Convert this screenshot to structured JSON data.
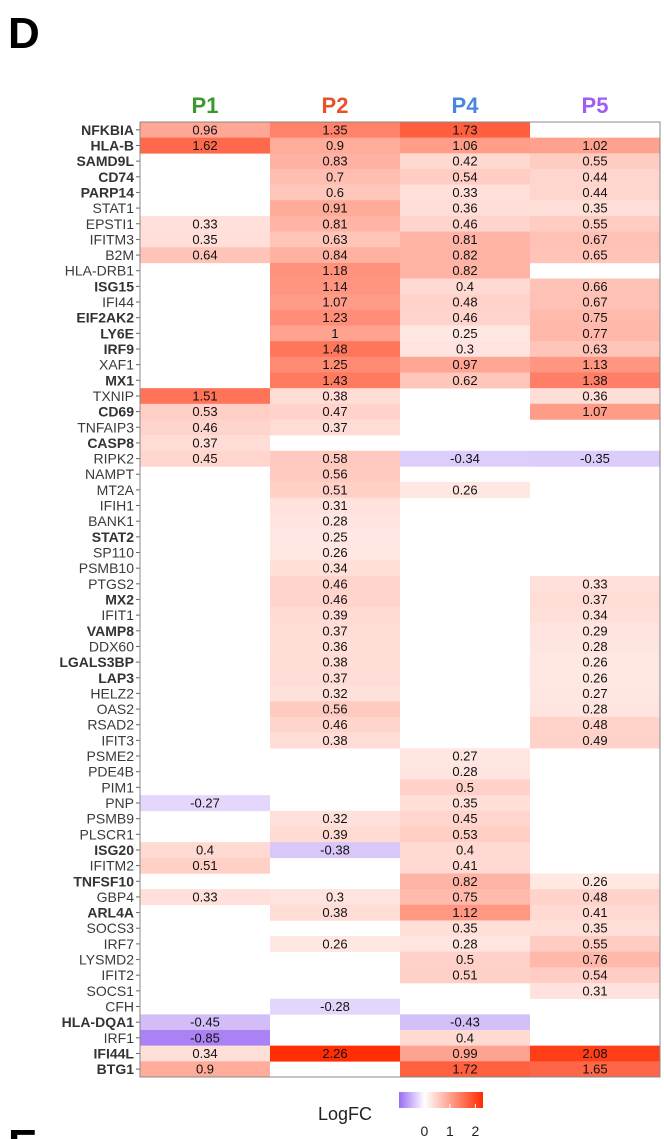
{
  "panel_label": "D",
  "next_panel_label": "E",
  "chart_data": {
    "type": "heatmap",
    "columns": [
      {
        "name": "P1",
        "color": "#3a9a2f"
      },
      {
        "name": "P2",
        "color": "#e8522b"
      },
      {
        "name": "P4",
        "color": "#4a86e0"
      },
      {
        "name": "P5",
        "color": "#a35cf0"
      }
    ],
    "rows": [
      {
        "gene": "NFKBIA",
        "bold": true,
        "values": [
          0.96,
          1.35,
          1.73,
          null
        ]
      },
      {
        "gene": "HLA-B",
        "bold": true,
        "values": [
          1.62,
          0.9,
          1.06,
          1.02
        ]
      },
      {
        "gene": "SAMD9L",
        "bold": true,
        "values": [
          null,
          0.83,
          0.42,
          0.55
        ]
      },
      {
        "gene": "CD74",
        "bold": true,
        "values": [
          null,
          0.7,
          0.54,
          0.44
        ]
      },
      {
        "gene": "PARP14",
        "bold": true,
        "values": [
          null,
          0.6,
          0.33,
          0.44
        ]
      },
      {
        "gene": "STAT1",
        "bold": false,
        "values": [
          null,
          0.91,
          0.36,
          0.35
        ]
      },
      {
        "gene": "EPSTI1",
        "bold": false,
        "values": [
          0.33,
          0.81,
          0.46,
          0.55
        ]
      },
      {
        "gene": "IFITM3",
        "bold": false,
        "values": [
          0.35,
          0.63,
          0.81,
          0.67
        ]
      },
      {
        "gene": "B2M",
        "bold": false,
        "values": [
          0.64,
          0.84,
          0.82,
          0.65
        ]
      },
      {
        "gene": "HLA-DRB1",
        "bold": false,
        "values": [
          null,
          1.18,
          0.82,
          null
        ]
      },
      {
        "gene": "ISG15",
        "bold": true,
        "values": [
          null,
          1.14,
          0.4,
          0.66
        ]
      },
      {
        "gene": "IFI44",
        "bold": false,
        "values": [
          null,
          1.07,
          0.48,
          0.67
        ]
      },
      {
        "gene": "EIF2AK2",
        "bold": true,
        "values": [
          null,
          1.23,
          0.46,
          0.75
        ]
      },
      {
        "gene": "LY6E",
        "bold": true,
        "values": [
          null,
          1,
          0.25,
          0.77
        ]
      },
      {
        "gene": "IRF9",
        "bold": true,
        "values": [
          null,
          1.48,
          0.3,
          0.63
        ]
      },
      {
        "gene": "XAF1",
        "bold": false,
        "values": [
          null,
          1.25,
          0.97,
          1.13
        ]
      },
      {
        "gene": "MX1",
        "bold": true,
        "values": [
          null,
          1.43,
          0.62,
          1.38
        ]
      },
      {
        "gene": "TXNIP",
        "bold": false,
        "values": [
          1.51,
          0.38,
          null,
          0.36
        ]
      },
      {
        "gene": "CD69",
        "bold": true,
        "values": [
          0.53,
          0.47,
          null,
          1.07
        ]
      },
      {
        "gene": "TNFAIP3",
        "bold": false,
        "values": [
          0.46,
          0.37,
          null,
          null
        ]
      },
      {
        "gene": "CASP8",
        "bold": true,
        "values": [
          0.37,
          null,
          null,
          null
        ]
      },
      {
        "gene": "RIPK2",
        "bold": false,
        "values": [
          0.45,
          0.58,
          -0.34,
          -0.35
        ]
      },
      {
        "gene": "NAMPT",
        "bold": false,
        "values": [
          null,
          0.56,
          null,
          null
        ]
      },
      {
        "gene": "MT2A",
        "bold": false,
        "values": [
          null,
          0.51,
          0.26,
          null
        ]
      },
      {
        "gene": "IFIH1",
        "bold": false,
        "values": [
          null,
          0.31,
          null,
          null
        ]
      },
      {
        "gene": "BANK1",
        "bold": false,
        "values": [
          null,
          0.28,
          null,
          null
        ]
      },
      {
        "gene": "STAT2",
        "bold": true,
        "values": [
          null,
          0.25,
          null,
          null
        ]
      },
      {
        "gene": "SP110",
        "bold": false,
        "values": [
          null,
          0.26,
          null,
          null
        ]
      },
      {
        "gene": "PSMB10",
        "bold": false,
        "values": [
          null,
          0.34,
          null,
          null
        ]
      },
      {
        "gene": "PTGS2",
        "bold": false,
        "values": [
          null,
          0.46,
          null,
          0.33
        ]
      },
      {
        "gene": "MX2",
        "bold": true,
        "values": [
          null,
          0.46,
          null,
          0.37
        ]
      },
      {
        "gene": "IFIT1",
        "bold": false,
        "values": [
          null,
          0.39,
          null,
          0.34
        ]
      },
      {
        "gene": "VAMP8",
        "bold": true,
        "values": [
          null,
          0.37,
          null,
          0.29
        ]
      },
      {
        "gene": "DDX60",
        "bold": false,
        "values": [
          null,
          0.36,
          null,
          0.28
        ]
      },
      {
        "gene": "LGALS3BP",
        "bold": true,
        "values": [
          null,
          0.38,
          null,
          0.26
        ]
      },
      {
        "gene": "LAP3",
        "bold": true,
        "values": [
          null,
          0.37,
          null,
          0.26
        ]
      },
      {
        "gene": "HELZ2",
        "bold": false,
        "values": [
          null,
          0.32,
          null,
          0.27
        ]
      },
      {
        "gene": "OAS2",
        "bold": false,
        "values": [
          null,
          0.56,
          null,
          0.28
        ]
      },
      {
        "gene": "RSAD2",
        "bold": false,
        "values": [
          null,
          0.46,
          null,
          0.48
        ]
      },
      {
        "gene": "IFIT3",
        "bold": false,
        "values": [
          null,
          0.38,
          null,
          0.49
        ]
      },
      {
        "gene": "PSME2",
        "bold": false,
        "values": [
          null,
          null,
          0.27,
          null
        ]
      },
      {
        "gene": "PDE4B",
        "bold": false,
        "values": [
          null,
          null,
          0.28,
          null
        ]
      },
      {
        "gene": "PIM1",
        "bold": false,
        "values": [
          null,
          null,
          0.5,
          null
        ]
      },
      {
        "gene": "PNP",
        "bold": false,
        "values": [
          -0.27,
          null,
          0.35,
          null
        ]
      },
      {
        "gene": "PSMB9",
        "bold": false,
        "values": [
          null,
          0.32,
          0.45,
          null
        ]
      },
      {
        "gene": "PLSCR1",
        "bold": false,
        "values": [
          null,
          0.39,
          0.53,
          null
        ]
      },
      {
        "gene": "ISG20",
        "bold": true,
        "values": [
          0.4,
          -0.38,
          0.4,
          null
        ]
      },
      {
        "gene": "IFITM2",
        "bold": false,
        "values": [
          0.51,
          null,
          0.41,
          null
        ]
      },
      {
        "gene": "TNFSF10",
        "bold": true,
        "values": [
          null,
          null,
          0.82,
          0.26
        ]
      },
      {
        "gene": "GBP4",
        "bold": false,
        "values": [
          0.33,
          0.3,
          0.75,
          0.48
        ]
      },
      {
        "gene": "ARL4A",
        "bold": true,
        "values": [
          null,
          0.38,
          1.12,
          0.41
        ]
      },
      {
        "gene": "SOCS3",
        "bold": false,
        "values": [
          null,
          null,
          0.35,
          0.35
        ]
      },
      {
        "gene": "IRF7",
        "bold": false,
        "values": [
          null,
          0.26,
          0.28,
          0.55
        ]
      },
      {
        "gene": "LYSMD2",
        "bold": false,
        "values": [
          null,
          null,
          0.5,
          0.76
        ]
      },
      {
        "gene": "IFIT2",
        "bold": false,
        "values": [
          null,
          null,
          0.51,
          0.54
        ]
      },
      {
        "gene": "SOCS1",
        "bold": false,
        "values": [
          null,
          null,
          null,
          0.31
        ]
      },
      {
        "gene": "CFH",
        "bold": false,
        "values": [
          null,
          -0.28,
          null,
          null
        ]
      },
      {
        "gene": "HLA-DQA1",
        "bold": true,
        "values": [
          -0.45,
          null,
          -0.43,
          null
        ]
      },
      {
        "gene": "IRF1",
        "bold": false,
        "values": [
          -0.85,
          null,
          0.4,
          null
        ]
      },
      {
        "gene": "IFI44L",
        "bold": true,
        "values": [
          0.34,
          2.26,
          0.99,
          2.08
        ]
      },
      {
        "gene": "BTG1",
        "bold": true,
        "values": [
          0.9,
          null,
          1.72,
          1.65
        ]
      }
    ],
    "legend": {
      "title": "LogFC",
      "ticks": [
        "0",
        "1",
        "2"
      ],
      "min": -1,
      "max": 2.3,
      "colors": {
        "low": "#9b6cf2",
        "mid": "#ffffff",
        "high": "#ff2a00"
      }
    }
  }
}
